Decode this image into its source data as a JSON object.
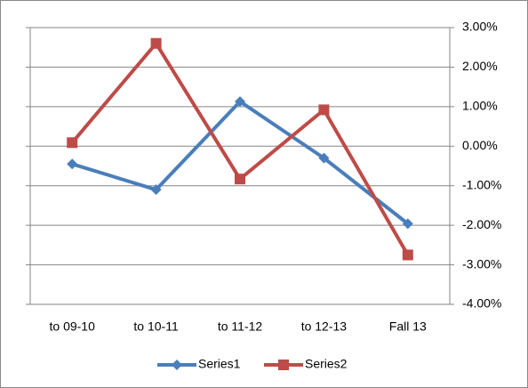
{
  "chart_data": {
    "type": "line",
    "categories": [
      "to 09-10",
      "to 10-11",
      "to 11-12",
      "to 12-13",
      "Fall 13"
    ],
    "series": [
      {
        "name": "Series1",
        "color": "#4a7ebb",
        "marker": "diamond",
        "values": [
          -0.45,
          -1.1,
          1.13,
          -0.3,
          -1.96
        ]
      },
      {
        "name": "Series2",
        "color": "#be4b48",
        "marker": "square",
        "values": [
          0.09,
          2.6,
          -0.83,
          0.92,
          -2.75
        ]
      }
    ],
    "ylim": [
      -4,
      3
    ],
    "yticks": [
      {
        "value": -4,
        "label": "-4.00%"
      },
      {
        "value": -3,
        "label": "-3.00%"
      },
      {
        "value": -2,
        "label": "-2.00%"
      },
      {
        "value": -1,
        "label": "-1.00%"
      },
      {
        "value": 0,
        "label": "0.00%"
      },
      {
        "value": 1,
        "label": "1.00%"
      },
      {
        "value": 2,
        "label": "2.00%"
      },
      {
        "value": 3,
        "label": "3.00%"
      }
    ],
    "y_axis_side": "right",
    "grid": true,
    "legend": "bottom"
  }
}
